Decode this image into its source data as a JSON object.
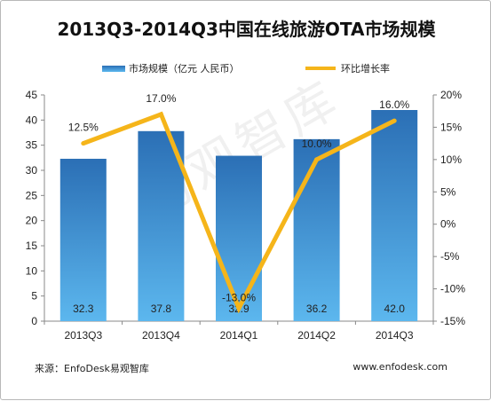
{
  "chart_data": {
    "type": "bar",
    "title": "2013Q3-2014Q3中国在线旅游OTA市场规模",
    "categories": [
      "2013Q3",
      "2013Q4",
      "2014Q1",
      "2014Q2",
      "2014Q3"
    ],
    "series": [
      {
        "name": "市场规模（亿元 人民币）",
        "type": "bar",
        "axis": "left",
        "values": [
          32.3,
          37.8,
          32.9,
          36.2,
          42.0
        ],
        "labels": [
          "32.3",
          "37.8",
          "32.9",
          "36.2",
          "42.0"
        ]
      },
      {
        "name": "环比增长率",
        "type": "line",
        "axis": "right",
        "values": [
          12.5,
          17.0,
          -13.0,
          10.0,
          16.0
        ],
        "labels": [
          "12.5%",
          "17.0%",
          "-13.0%",
          "10.0%",
          "16.0%"
        ]
      }
    ],
    "y_left": {
      "min": 0,
      "max": 45,
      "ticks": [
        "0",
        "5",
        "10",
        "15",
        "20",
        "25",
        "30",
        "35",
        "40",
        "45"
      ]
    },
    "y_right": {
      "min": -15,
      "max": 20,
      "ticks": [
        "-15%",
        "-10%",
        "-5%",
        "0%",
        "5%",
        "10%",
        "15%",
        "20%"
      ]
    },
    "grid": false,
    "legend_position": "top",
    "colors": {
      "bar_top": "#2b6fb5",
      "bar_bottom": "#5cb7ee",
      "line": "#f5b51a"
    }
  },
  "watermark": "易观智库",
  "footer": {
    "source": "来源：EnfoDesk易观智库",
    "website": "www.enfodesk.com"
  }
}
